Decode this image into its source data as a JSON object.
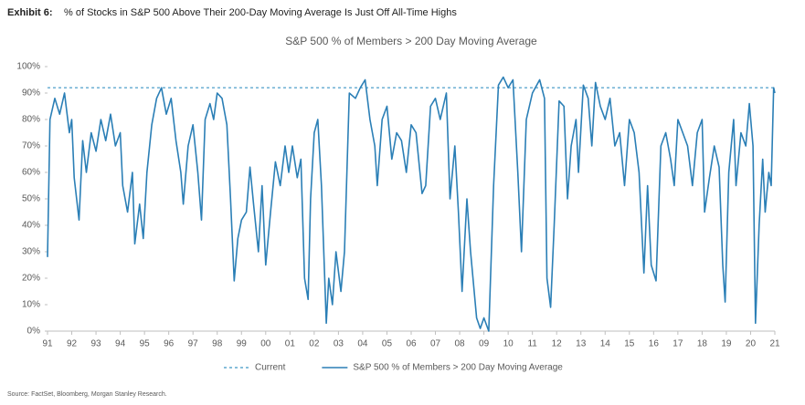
{
  "exhibit_label": "Exhibit 6:",
  "headline": "% of Stocks in S&P 500 Above Their 200-Day Moving Average Is Just Off All-Time Highs",
  "source": "Source: FactSet, Bloomberg, Morgan Stanley Research.",
  "chart_data": {
    "type": "line",
    "title": "S&P 500 % of Members > 200 Day Moving Average",
    "xlim": [
      1991,
      2021
    ],
    "xticks": [
      {
        "value": 1991,
        "label": "91"
      },
      {
        "value": 1992,
        "label": "92"
      },
      {
        "value": 1993,
        "label": "93"
      },
      {
        "value": 1994,
        "label": "94"
      },
      {
        "value": 1995,
        "label": "95"
      },
      {
        "value": 1996,
        "label": "96"
      },
      {
        "value": 1997,
        "label": "97"
      },
      {
        "value": 1998,
        "label": "98"
      },
      {
        "value": 1999,
        "label": "99"
      },
      {
        "value": 2000,
        "label": "00"
      },
      {
        "value": 2001,
        "label": "01"
      },
      {
        "value": 2002,
        "label": "02"
      },
      {
        "value": 2003,
        "label": "03"
      },
      {
        "value": 2004,
        "label": "04"
      },
      {
        "value": 2005,
        "label": "05"
      },
      {
        "value": 2006,
        "label": "06"
      },
      {
        "value": 2007,
        "label": "07"
      },
      {
        "value": 2008,
        "label": "08"
      },
      {
        "value": 2009,
        "label": "09"
      },
      {
        "value": 2010,
        "label": "10"
      },
      {
        "value": 2011,
        "label": "11"
      },
      {
        "value": 2012,
        "label": "12"
      },
      {
        "value": 2013,
        "label": "13"
      },
      {
        "value": 2014,
        "label": "14"
      },
      {
        "value": 2015,
        "label": "15"
      },
      {
        "value": 2016,
        "label": "16"
      },
      {
        "value": 2017,
        "label": "17"
      },
      {
        "value": 2018,
        "label": "18"
      },
      {
        "value": 2019,
        "label": "19"
      },
      {
        "value": 2020,
        "label": "20"
      },
      {
        "value": 2021,
        "label": "21"
      }
    ],
    "ylim": [
      0,
      100
    ],
    "yticks": [
      {
        "value": 0,
        "label": "0%"
      },
      {
        "value": 10,
        "label": "10%"
      },
      {
        "value": 20,
        "label": "20%"
      },
      {
        "value": 30,
        "label": "30%"
      },
      {
        "value": 40,
        "label": "40%"
      },
      {
        "value": 50,
        "label": "50%"
      },
      {
        "value": 60,
        "label": "60%"
      },
      {
        "value": 70,
        "label": "70%"
      },
      {
        "value": 80,
        "label": "80%"
      },
      {
        "value": 90,
        "label": "90%"
      },
      {
        "value": 100,
        "label": "100%"
      }
    ],
    "series": [
      {
        "name": "Current",
        "color": "#5fa8cf",
        "dashed": true,
        "x": [
          1991,
          2021
        ],
        "values": [
          92,
          92
        ]
      },
      {
        "name": "S&P 500 % of Members > 200 Day Moving Average",
        "color": "#2b7fb6",
        "dashed": false,
        "x": [
          1991.0,
          1991.1,
          1991.3,
          1991.5,
          1991.7,
          1991.9,
          1992.0,
          1992.1,
          1992.3,
          1992.45,
          1992.6,
          1992.8,
          1993.0,
          1993.2,
          1993.4,
          1993.6,
          1993.8,
          1994.0,
          1994.1,
          1994.3,
          1994.5,
          1994.6,
          1994.8,
          1994.95,
          1995.1,
          1995.3,
          1995.5,
          1995.7,
          1995.9,
          1996.1,
          1996.3,
          1996.5,
          1996.6,
          1996.8,
          1997.0,
          1997.2,
          1997.35,
          1997.5,
          1997.7,
          1997.85,
          1998.0,
          1998.2,
          1998.4,
          1998.55,
          1998.7,
          1998.85,
          1999.0,
          1999.2,
          1999.35,
          1999.5,
          1999.7,
          1999.85,
          2000.0,
          2000.2,
          2000.4,
          2000.6,
          2000.8,
          2000.95,
          2001.1,
          2001.3,
          2001.45,
          2001.6,
          2001.75,
          2001.85,
          2002.0,
          2002.15,
          2002.3,
          2002.5,
          2002.6,
          2002.75,
          2002.9,
          2003.1,
          2003.25,
          2003.45,
          2003.7,
          2003.9,
          2004.1,
          2004.3,
          2004.5,
          2004.6,
          2004.8,
          2005.0,
          2005.2,
          2005.4,
          2005.6,
          2005.8,
          2006.0,
          2006.2,
          2006.45,
          2006.6,
          2006.8,
          2007.0,
          2007.2,
          2007.45,
          2007.6,
          2007.8,
          2007.95,
          2008.1,
          2008.3,
          2008.45,
          2008.7,
          2008.85,
          2009.0,
          2009.2,
          2009.4,
          2009.6,
          2009.8,
          2010.0,
          2010.2,
          2010.4,
          2010.55,
          2010.75,
          2011.0,
          2011.3,
          2011.5,
          2011.6,
          2011.75,
          2011.9,
          2012.1,
          2012.3,
          2012.45,
          2012.6,
          2012.8,
          2012.9,
          2013.1,
          2013.3,
          2013.45,
          2013.6,
          2013.8,
          2014.0,
          2014.2,
          2014.4,
          2014.6,
          2014.8,
          2015.0,
          2015.2,
          2015.4,
          2015.6,
          2015.75,
          2015.9,
          2016.1,
          2016.3,
          2016.5,
          2016.7,
          2016.85,
          2017.0,
          2017.2,
          2017.4,
          2017.6,
          2017.8,
          2018.0,
          2018.1,
          2018.3,
          2018.5,
          2018.7,
          2018.85,
          2018.95,
          2019.1,
          2019.3,
          2019.4,
          2019.6,
          2019.8,
          2019.95,
          2020.1,
          2020.2,
          2020.35,
          2020.5,
          2020.6,
          2020.75,
          2020.85,
          2020.95,
          2021.0
        ],
        "values": [
          28,
          80,
          88,
          82,
          90,
          75,
          80,
          58,
          42,
          72,
          60,
          75,
          68,
          80,
          72,
          82,
          70,
          75,
          55,
          45,
          60,
          33,
          48,
          35,
          60,
          78,
          88,
          92,
          82,
          88,
          72,
          60,
          48,
          70,
          78,
          60,
          42,
          80,
          86,
          80,
          90,
          88,
          78,
          50,
          19,
          35,
          42,
          45,
          62,
          48,
          30,
          55,
          25,
          45,
          64,
          55,
          70,
          60,
          70,
          58,
          65,
          20,
          12,
          50,
          75,
          80,
          55,
          3,
          20,
          10,
          30,
          15,
          30,
          90,
          88,
          92,
          95,
          80,
          70,
          55,
          80,
          85,
          65,
          75,
          72,
          60,
          78,
          75,
          52,
          55,
          85,
          88,
          80,
          90,
          50,
          70,
          45,
          15,
          50,
          30,
          5,
          1,
          5,
          0,
          55,
          93,
          96,
          92,
          95,
          60,
          30,
          80,
          90,
          95,
          88,
          20,
          9,
          40,
          87,
          85,
          50,
          70,
          80,
          60,
          93,
          88,
          70,
          94,
          85,
          80,
          88,
          70,
          75,
          55,
          80,
          75,
          60,
          22,
          55,
          25,
          19,
          70,
          75,
          65,
          55,
          80,
          75,
          70,
          55,
          75,
          80,
          45,
          58,
          70,
          62,
          25,
          11,
          60,
          80,
          55,
          75,
          70,
          86,
          70,
          3,
          40,
          65,
          45,
          60,
          55,
          92,
          90
        ]
      }
    ]
  }
}
